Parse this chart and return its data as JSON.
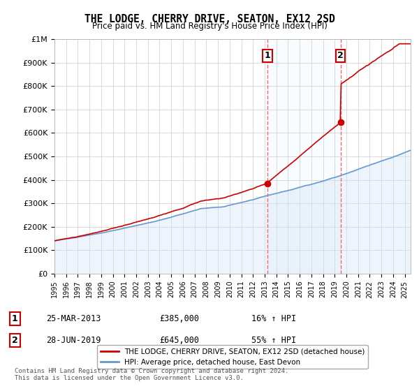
{
  "title": "THE LODGE, CHERRY DRIVE, SEATON, EX12 2SD",
  "subtitle": "Price paid vs. HM Land Registry's House Price Index (HPI)",
  "xlabel": "",
  "ylabel": "",
  "ylim": [
    0,
    1000000
  ],
  "xlim_start": 1995.0,
  "xlim_end": 2025.5,
  "yticks": [
    0,
    100000,
    200000,
    300000,
    400000,
    500000,
    600000,
    700000,
    800000,
    900000,
    1000000
  ],
  "ytick_labels": [
    "£0",
    "£100K",
    "£200K",
    "£300K",
    "£400K",
    "£500K",
    "£600K",
    "£700K",
    "£800K",
    "£900K",
    "£1M"
  ],
  "sale1_x": 2013.23,
  "sale1_y": 385000,
  "sale1_label": "1",
  "sale1_date": "25-MAR-2013",
  "sale1_price": "£385,000",
  "sale1_hpi": "16% ↑ HPI",
  "sale2_x": 2019.49,
  "sale2_y": 645000,
  "sale2_label": "2",
  "sale2_date": "28-JUN-2019",
  "sale2_price": "£645,000",
  "sale2_hpi": "55% ↑ HPI",
  "line1_color": "#cc0000",
  "line2_color": "#6699cc",
  "fill_color": "#cce0f5",
  "shade_color": "#e8f4ff",
  "vline_color": "#ff6666",
  "bg_color": "#ffffff",
  "grid_color": "#cccccc",
  "legend1_label": "THE LODGE, CHERRY DRIVE, SEATON, EX12 2SD (detached house)",
  "legend2_label": "HPI: Average price, detached house, East Devon",
  "footnote": "Contains HM Land Registry data © Crown copyright and database right 2024.\nThis data is licensed under the Open Government Licence v3.0.",
  "marker_box_color": "#cc0000"
}
